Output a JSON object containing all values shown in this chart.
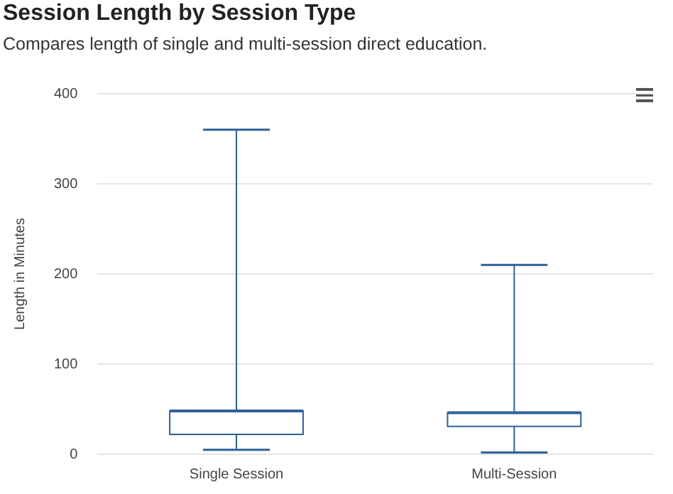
{
  "chart_data": {
    "type": "box",
    "title": "Session Length by Session Type",
    "subtitle": "Compares length of single and multi-session direct education.",
    "ylabel": "Length in Minutes",
    "categories": [
      "Single Session",
      "Multi-Session"
    ],
    "boxes": [
      {
        "low": 5,
        "q1": 22,
        "median": 48,
        "q3": 48,
        "high": 360
      },
      {
        "low": 2,
        "q1": 31,
        "median": 46,
        "q3": 46,
        "high": 210
      }
    ],
    "color": "#2f6199",
    "ylim": [
      0,
      400
    ],
    "yticks": [
      0,
      100,
      200,
      300,
      400
    ],
    "grid": "y",
    "legend": false
  }
}
